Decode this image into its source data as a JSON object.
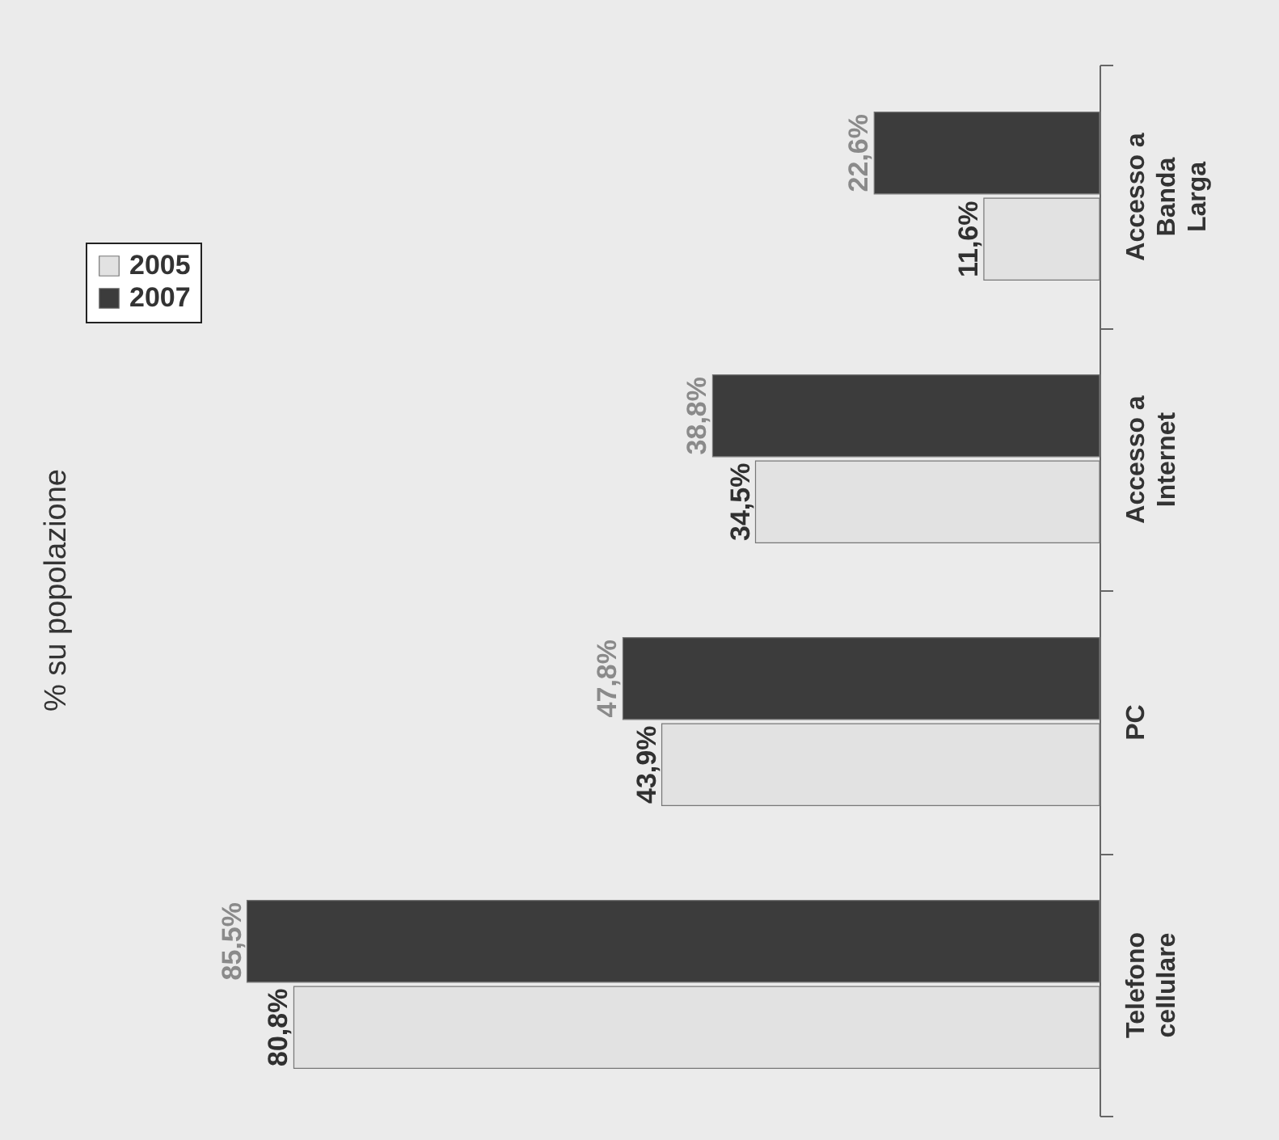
{
  "chart_data": {
    "type": "bar",
    "orientation": "horizontal",
    "title": "% su popolazione",
    "categories": [
      "Accesso a Banda Larga",
      "Accesso a Internet",
      "PC",
      "Telefono cellulare"
    ],
    "series": [
      {
        "name": "2005",
        "color": "#e2e2e2",
        "values": [
          11.6,
          34.5,
          43.9,
          80.8
        ],
        "value_labels": [
          "11,6%",
          "34,5%",
          "43,9%",
          "80,8%"
        ]
      },
      {
        "name": "2007",
        "color": "#3c3c3c",
        "values": [
          22.6,
          38.8,
          47.8,
          85.5
        ],
        "value_labels": [
          "22,6%",
          "38,8%",
          "47,8%",
          "85,5%"
        ]
      }
    ],
    "legend": "top left"
  }
}
